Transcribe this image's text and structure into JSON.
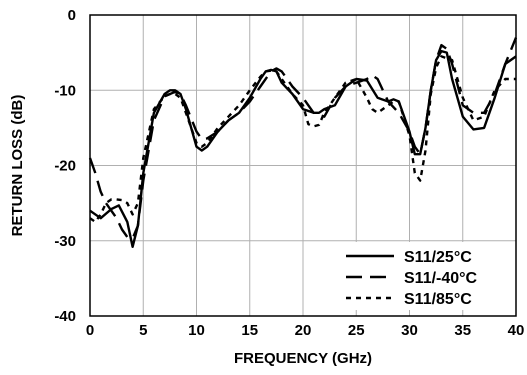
{
  "chart_data": {
    "type": "line",
    "title": "",
    "xlabel": "FREQUENCY (GHz)",
    "ylabel": "RETURN LOSS (dB)",
    "xlim": [
      0,
      40
    ],
    "ylim": [
      -40,
      0
    ],
    "x_ticks": [
      0,
      5,
      10,
      15,
      20,
      25,
      30,
      35,
      40
    ],
    "y_ticks": [
      0,
      -10,
      -20,
      -30,
      -40
    ],
    "grid": true,
    "legend_position": "bottom-right",
    "series": [
      {
        "name": "S11/25°C",
        "dash": "solid",
        "x": [
          0,
          1,
          2,
          2.7,
          3.5,
          4,
          4.5,
          5,
          6,
          7,
          7.5,
          8,
          8.5,
          9,
          10,
          10.5,
          11,
          12,
          13,
          14,
          15,
          16,
          16.5,
          17,
          17.5,
          18,
          19,
          20,
          21,
          21.5,
          22,
          23,
          24,
          25,
          26,
          27,
          28,
          28.5,
          29,
          30,
          30.5,
          31,
          31.5,
          32,
          32.5,
          33,
          33.5,
          34,
          35,
          36,
          37,
          38,
          39,
          40
        ],
        "y": [
          -26,
          -27,
          -25.8,
          -25.3,
          -27.5,
          -30.8,
          -28,
          -21,
          -13,
          -10.5,
          -10,
          -10,
          -10.5,
          -12.5,
          -17.5,
          -18,
          -17.5,
          -15.5,
          -14,
          -13,
          -11,
          -8.5,
          -7.5,
          -7.3,
          -7.5,
          -9,
          -10.5,
          -12.5,
          -13,
          -13,
          -12.5,
          -12,
          -9.5,
          -8.5,
          -8.7,
          -11,
          -11.5,
          -11.2,
          -11.5,
          -15.5,
          -18.5,
          -18.5,
          -15,
          -10,
          -6,
          -4.8,
          -5,
          -8.5,
          -13.5,
          -15.2,
          -15,
          -11,
          -6.5,
          -5.5
        ]
      },
      {
        "name": "S11/-40°C",
        "dash": "long-dash",
        "x": [
          0,
          0.5,
          1,
          1.5,
          2,
          2.5,
          3,
          3.5,
          4,
          4.5,
          5,
          5.5,
          6,
          7,
          8,
          8.5,
          9,
          10,
          10.5,
          11,
          12,
          13,
          14,
          15,
          16,
          17,
          17.5,
          18,
          19,
          20,
          21,
          22,
          23,
          24,
          25,
          26,
          26.5,
          27,
          28,
          29,
          30,
          30.5,
          31,
          31.5,
          32,
          32.5,
          33,
          33.5,
          34,
          35,
          36,
          37,
          38,
          39,
          40
        ],
        "y": [
          -19,
          -21,
          -23.5,
          -25,
          -26,
          -27,
          -28.5,
          -29.5,
          -29.7,
          -28,
          -22,
          -18,
          -14,
          -10.8,
          -10.2,
          -10.5,
          -12,
          -15.5,
          -16.5,
          -16.4,
          -15.5,
          -14,
          -13,
          -11.5,
          -9.5,
          -7.5,
          -7.1,
          -7.5,
          -9.5,
          -11,
          -13,
          -13.5,
          -11,
          -9.5,
          -9,
          -8.5,
          -8,
          -8.5,
          -11.5,
          -13,
          -15.5,
          -17.5,
          -18.5,
          -15,
          -10,
          -6,
          -4,
          -4.5,
          -6.5,
          -12,
          -13,
          -13,
          -10.5,
          -6.5,
          -3
        ]
      },
      {
        "name": "S11/85°C",
        "dash": "short-dash",
        "x": [
          0,
          0.5,
          1,
          1.5,
          2,
          2.5,
          3,
          3.5,
          4,
          4.5,
          5,
          6,
          7,
          7.5,
          8,
          8.5,
          9,
          10,
          10.5,
          11,
          12,
          13,
          14,
          15,
          16,
          16.5,
          17,
          17.5,
          18,
          19,
          20,
          20.5,
          21,
          21.5,
          22,
          23,
          24,
          25,
          26,
          26.5,
          27,
          28,
          28.5,
          29,
          30,
          30.5,
          31,
          31.5,
          32,
          32.5,
          33,
          34,
          35,
          36,
          37,
          38,
          39,
          40
        ],
        "y": [
          -27,
          -27.5,
          -26.5,
          -25,
          -24.5,
          -24.5,
          -24.6,
          -25,
          -26.5,
          -25,
          -19,
          -12.5,
          -10.8,
          -10.5,
          -10.5,
          -11,
          -13,
          -17,
          -17.5,
          -17,
          -15,
          -13.5,
          -12,
          -10,
          -8.2,
          -7.5,
          -7.4,
          -7.5,
          -8.5,
          -10.5,
          -12,
          -14.5,
          -14.8,
          -14.6,
          -13,
          -11,
          -9,
          -8.5,
          -11,
          -12.5,
          -13,
          -12,
          -11.5,
          -11.5,
          -16,
          -21,
          -22,
          -18,
          -10.5,
          -7,
          -5.5,
          -6,
          -11,
          -14,
          -13.5,
          -10,
          -8.5,
          -8.5
        ]
      }
    ]
  }
}
